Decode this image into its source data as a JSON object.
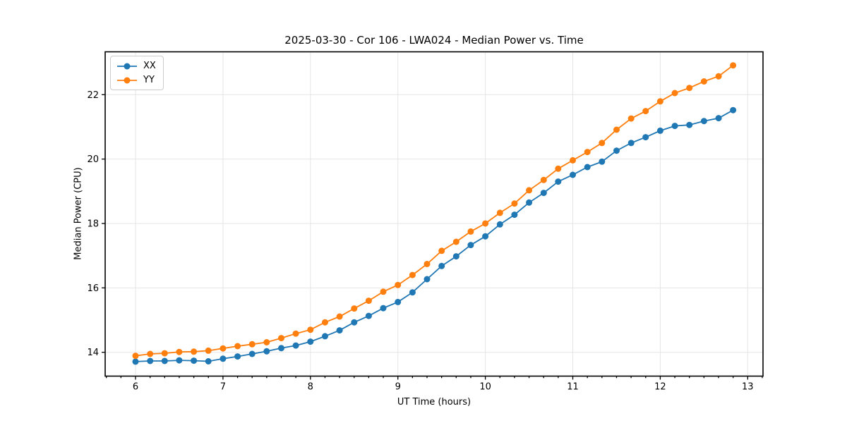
{
  "chart_data": {
    "type": "line",
    "title": "2025-03-30 - Cor 106 - LWA024 - Median Power vs. Time",
    "xlabel": "UT Time (hours)",
    "ylabel": "Median Power (CPU)",
    "xlim": [
      5.653,
      13.175
    ],
    "ylim": [
      13.26,
      23.33
    ],
    "x_ticks": [
      6,
      7,
      8,
      9,
      10,
      11,
      12,
      13
    ],
    "y_ticks": [
      14,
      16,
      18,
      20,
      22
    ],
    "x_minor_step": 0.1666667,
    "grid": true,
    "grid_color": "#e5e5e5",
    "spine_color": "#000000",
    "legend": {
      "position": "upper-left",
      "entries": [
        "XX",
        "YY"
      ]
    },
    "x": [
      6.0,
      6.167,
      6.333,
      6.5,
      6.667,
      6.833,
      7.0,
      7.167,
      7.333,
      7.5,
      7.667,
      7.833,
      8.0,
      8.167,
      8.333,
      8.5,
      8.667,
      8.833,
      9.0,
      9.167,
      9.333,
      9.5,
      9.667,
      9.833,
      10.0,
      10.167,
      10.333,
      10.5,
      10.667,
      10.833,
      11.0,
      11.167,
      11.333,
      11.5,
      11.667,
      11.833,
      12.0,
      12.167,
      12.333,
      12.5,
      12.667,
      12.833
    ],
    "series": [
      {
        "name": "XX",
        "color": "#1f77b4",
        "values": [
          13.71,
          13.73,
          13.73,
          13.75,
          13.74,
          13.72,
          13.8,
          13.87,
          13.95,
          14.03,
          14.13,
          14.21,
          14.33,
          14.5,
          14.68,
          14.93,
          15.13,
          15.37,
          15.56,
          15.86,
          16.27,
          16.68,
          16.98,
          17.33,
          17.6,
          17.97,
          18.27,
          18.65,
          18.95,
          19.3,
          19.51,
          19.75,
          19.92,
          20.26,
          20.5,
          20.68,
          20.88,
          21.03,
          21.06,
          21.18,
          21.27,
          21.52
        ]
      },
      {
        "name": "YY",
        "color": "#ff7f0e",
        "values": [
          13.89,
          13.95,
          13.97,
          14.01,
          14.02,
          14.05,
          14.12,
          14.19,
          14.25,
          14.31,
          14.44,
          14.58,
          14.7,
          14.93,
          15.11,
          15.36,
          15.6,
          15.88,
          16.09,
          16.4,
          16.74,
          17.15,
          17.43,
          17.75,
          18.0,
          18.33,
          18.62,
          19.03,
          19.35,
          19.7,
          19.96,
          20.22,
          20.5,
          20.91,
          21.26,
          21.49,
          21.79,
          22.05,
          22.21,
          22.41,
          22.57,
          22.91
        ]
      }
    ]
  }
}
